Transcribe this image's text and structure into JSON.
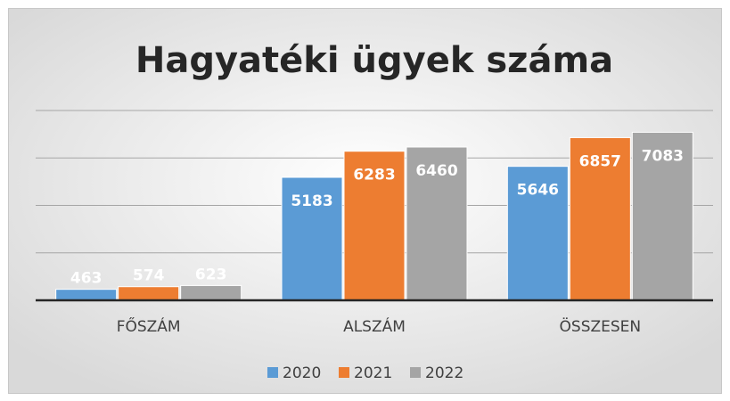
{
  "chart_data": {
    "type": "bar",
    "title": "Hagyatéki ügyek száma",
    "categories": [
      "FŐSZÁM",
      "ALSZÁM",
      "ÖSSZESEN"
    ],
    "series": [
      {
        "name": "2020",
        "color": "#5b9bd5",
        "values": [
          463,
          5183,
          5646
        ]
      },
      {
        "name": "2021",
        "color": "#ed7d31",
        "values": [
          574,
          6283,
          6857
        ]
      },
      {
        "name": "2022",
        "color": "#a5a5a5",
        "values": [
          623,
          6460,
          7083
        ]
      }
    ],
    "ylim": [
      0,
      8000
    ],
    "yticks": [
      0,
      2000,
      4000,
      6000,
      8000
    ],
    "grid": true,
    "legend": "bottom"
  }
}
